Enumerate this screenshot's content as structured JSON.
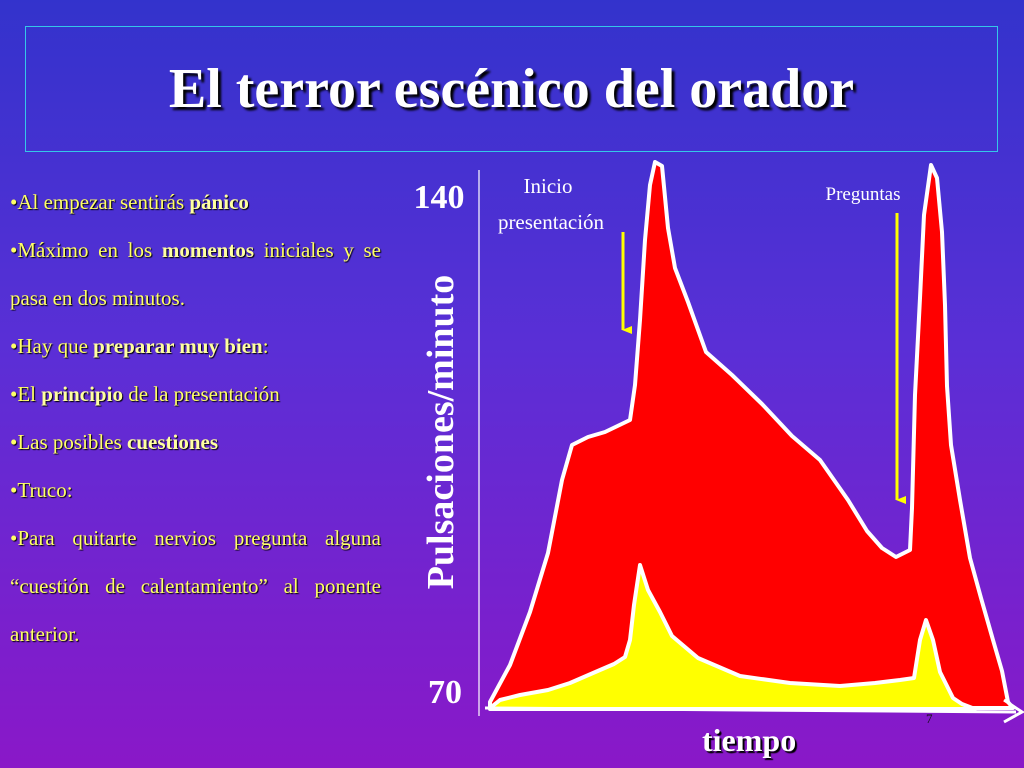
{
  "slide": {
    "title": "El terror escénico del orador",
    "page_number": "7"
  },
  "bullets": [
    {
      "parts": [
        {
          "t": "•Al empezar sentirás  ",
          "b": false
        },
        {
          "t": "pánico",
          "b": true
        }
      ]
    },
    {
      "parts": [
        {
          "t": "•Máximo en los ",
          "b": false
        },
        {
          "t": "momentos",
          "b": true
        },
        {
          "t": " iniciales y se pasa en dos minutos.",
          "b": false
        }
      ]
    },
    {
      "parts": [
        {
          "t": "•Hay que ",
          "b": false
        },
        {
          "t": "preparar muy bien",
          "b": true
        },
        {
          "t": ":",
          "b": false
        }
      ]
    },
    {
      "parts": [
        {
          "t": "•El ",
          "b": false
        },
        {
          "t": "principio",
          "b": true
        },
        {
          "t": " de la presentación",
          "b": false
        }
      ]
    },
    {
      "parts": [
        {
          "t": "•Las posibles ",
          "b": false
        },
        {
          "t": "cuestiones",
          "b": true
        }
      ]
    },
    {
      "parts": [
        {
          "t": "•Truco:",
          "b": false
        }
      ]
    },
    {
      "parts": [
        {
          "t": "•Para quitarte nervios pregunta alguna “cuestión de calentamiento” al ponente anterior.",
          "b": false
        }
      ]
    }
  ],
  "chart_data": {
    "type": "area",
    "ylabel": "Pulsaciones/minuto",
    "xlabel": "tiempo",
    "y_ticks": [
      "140",
      "70"
    ],
    "ylim": [
      70,
      140
    ],
    "annotations": [
      {
        "lines": [
          "Inicio",
          "presentación"
        ]
      },
      {
        "lines": [
          "Preguntas"
        ]
      }
    ],
    "colors": {
      "outer": "#ff0000",
      "inner": "#ffff00",
      "outline": "#ffffff",
      "arrow": "#ffff00"
    }
  }
}
